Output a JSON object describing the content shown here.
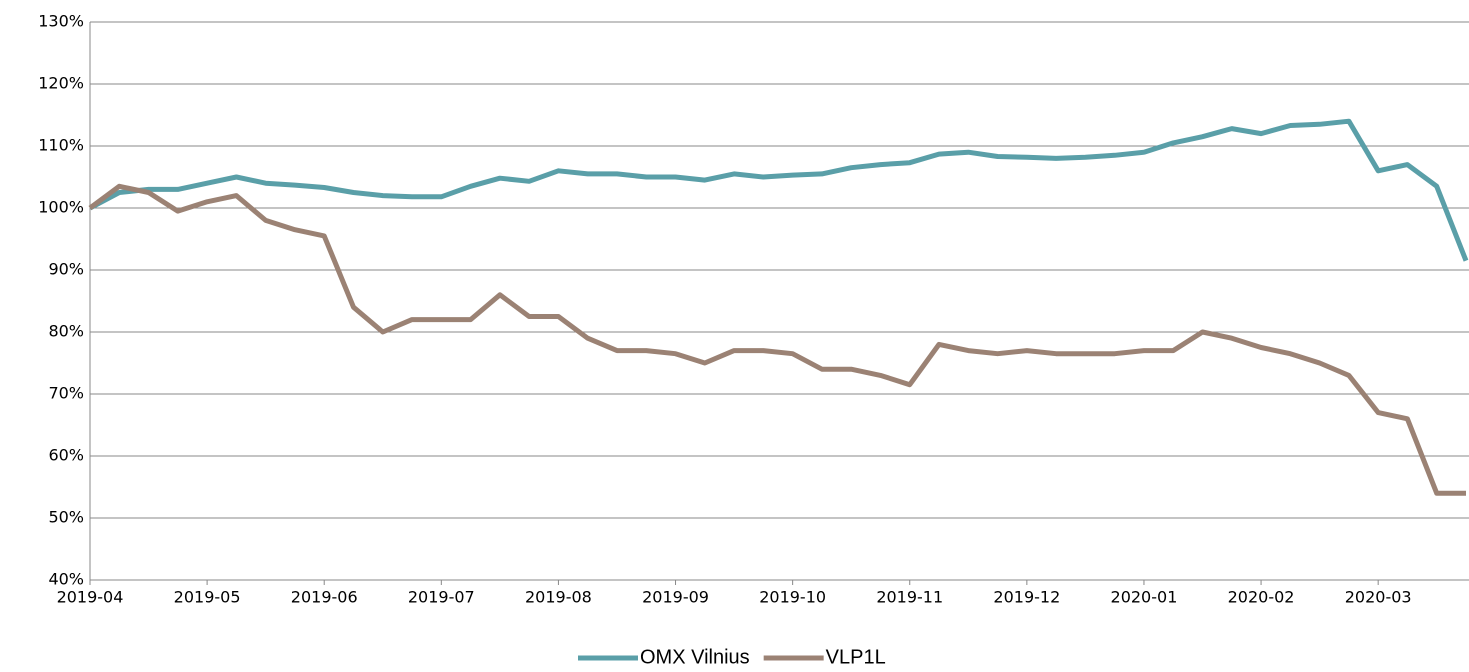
{
  "chart_data": {
    "type": "line",
    "categories": [
      "2019-04",
      null,
      null,
      null,
      "2019-05",
      null,
      null,
      null,
      "2019-06",
      null,
      null,
      null,
      "2019-07",
      null,
      null,
      null,
      "2019-08",
      null,
      null,
      null,
      "2019-09",
      null,
      null,
      null,
      "2019-10",
      null,
      null,
      null,
      "2019-11",
      null,
      null,
      null,
      "2019-12",
      null,
      null,
      null,
      "2020-01",
      null,
      null,
      null,
      "2020-02",
      null,
      null,
      null,
      "2020-03",
      null,
      null,
      null
    ],
    "series": [
      {
        "name": "OMX Vilnius",
        "color": "#5a9fa8",
        "values": [
          100,
          102.5,
          103,
          103,
          104,
          105,
          104,
          103.7,
          103.3,
          102.5,
          102,
          101.8,
          101.8,
          103.5,
          104.8,
          104.3,
          106,
          105.5,
          105.5,
          105,
          105,
          104.5,
          105.5,
          105,
          105.3,
          105.5,
          106.5,
          107,
          107.3,
          108.7,
          109,
          108.3,
          108.2,
          108,
          108.2,
          108.5,
          109,
          110.5,
          111.5,
          112.8,
          112,
          113.3,
          113.5,
          114,
          106,
          107,
          103.5,
          91.5
        ]
      },
      {
        "name": "VLP1L",
        "color": "#9b8274",
        "values": [
          100,
          103.5,
          102.5,
          99.5,
          101,
          102,
          98,
          96.5,
          95.5,
          84,
          80,
          82,
          82,
          82,
          86,
          82.5,
          82.5,
          79,
          77,
          77,
          76.5,
          75,
          77,
          77,
          76.5,
          74,
          74,
          73,
          71.5,
          78,
          77,
          76.5,
          77,
          76.5,
          76.5,
          76.5,
          77,
          77,
          80,
          79,
          77.5,
          76.5,
          75,
          73,
          67,
          66,
          54,
          54
        ]
      }
    ],
    "ylim": [
      40,
      130
    ],
    "yticks": [
      {
        "value": 40,
        "label": "40%"
      },
      {
        "value": 50,
        "label": "50%"
      },
      {
        "value": 60,
        "label": "60%"
      },
      {
        "value": 70,
        "label": "70%"
      },
      {
        "value": 80,
        "label": "80%"
      },
      {
        "value": 90,
        "label": "90%"
      },
      {
        "value": 100,
        "label": "100%"
      },
      {
        "value": 110,
        "label": "110%"
      },
      {
        "value": 120,
        "label": "120%"
      },
      {
        "value": 130,
        "label": "130%"
      }
    ],
    "grid": true,
    "legend": "bottom"
  }
}
